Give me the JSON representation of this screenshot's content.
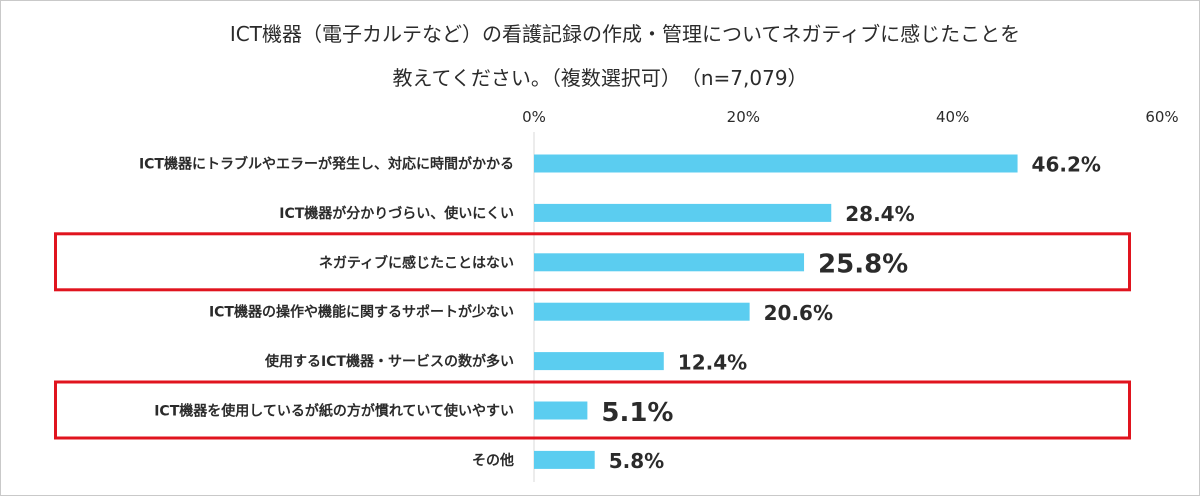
{
  "title_lines": [
    "ICT機器（電子カルテなど）の看護記録の作成・管理についてネガティブに感じたことを",
    "教えてください。（複数選択可）　（n=7,079）"
  ],
  "chart_data": {
    "type": "bar",
    "orientation": "horizontal",
    "title": "ICT機器（電子カルテなど）の看護記録の作成・管理についてネガティブに感じたことを教えてください。（複数選択可）　（n=7,079）",
    "categories": [
      "ICT機器にトラブルやエラーが発生し、対応に時間がかかる",
      "ICT機器が分かりづらい、使いにくい",
      "ネガティブに感じたことはない",
      "ICT機器の操作や機能に関するサポートが少ない",
      "使用するICT機器・サービスの数が多い",
      "ICT機器を使用しているが紙の方が慣れていて使いやすい",
      "その他"
    ],
    "values": [
      46.2,
      28.4,
      25.8,
      20.6,
      12.4,
      5.1,
      5.8
    ],
    "value_labels": [
      "46.2%",
      "28.4%",
      "25.8%",
      "20.6%",
      "12.4%",
      "5.1%",
      "5.8%"
    ],
    "highlighted": [
      false,
      false,
      true,
      false,
      false,
      true,
      false
    ],
    "xlim": [
      0,
      60
    ],
    "xticks": [
      0,
      20,
      40,
      60
    ],
    "xtick_labels": [
      "0%",
      "20%",
      "40%",
      "60%"
    ],
    "axis_position": "top",
    "grid": false,
    "legend": "none",
    "bar_color": "#5bcdf0",
    "highlight_color": "#e0141e",
    "axis_line_color": "#d9d9d9"
  }
}
